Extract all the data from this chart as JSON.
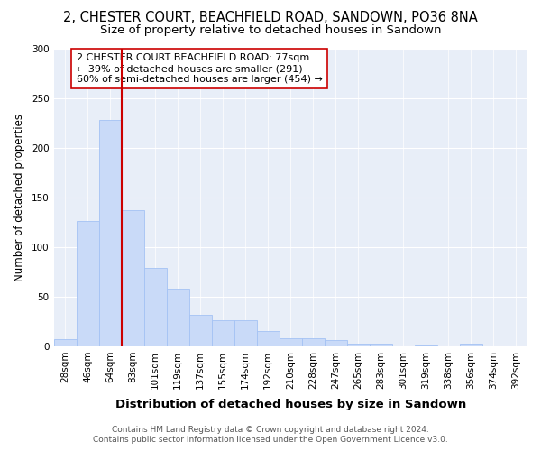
{
  "title": "2, CHESTER COURT, BEACHFIELD ROAD, SANDOWN, PO36 8NA",
  "subtitle": "Size of property relative to detached houses in Sandown",
  "xlabel": "Distribution of detached houses by size in Sandown",
  "ylabel": "Number of detached properties",
  "bar_labels": [
    "28sqm",
    "46sqm",
    "64sqm",
    "83sqm",
    "101sqm",
    "119sqm",
    "137sqm",
    "155sqm",
    "174sqm",
    "192sqm",
    "210sqm",
    "228sqm",
    "247sqm",
    "265sqm",
    "283sqm",
    "301sqm",
    "319sqm",
    "338sqm",
    "356sqm",
    "374sqm",
    "392sqm"
  ],
  "bar_values": [
    7,
    126,
    228,
    137,
    79,
    58,
    32,
    26,
    26,
    15,
    8,
    8,
    6,
    3,
    3,
    0,
    1,
    0,
    3,
    0,
    0
  ],
  "bar_color": "#c9daf8",
  "bar_edge_color": "#a4c2f4",
  "vline_color": "#cc0000",
  "vline_pos": 3.0,
  "ylim": [
    0,
    300
  ],
  "yticks": [
    0,
    50,
    100,
    150,
    200,
    250,
    300
  ],
  "annotation_title": "2 CHESTER COURT BEACHFIELD ROAD: 77sqm",
  "annotation_line1": "← 39% of detached houses are smaller (291)",
  "annotation_line2": "60% of semi-detached houses are larger (454) →",
  "annotation_box_color": "#ffffff",
  "annotation_edge_color": "#cc0000",
  "footer1": "Contains HM Land Registry data © Crown copyright and database right 2024.",
  "footer2": "Contains public sector information licensed under the Open Government Licence v3.0.",
  "plot_bg_color": "#e8eef8",
  "fig_bg_color": "#ffffff",
  "grid_color": "#ffffff",
  "title_fontsize": 10.5,
  "subtitle_fontsize": 9.5,
  "xlabel_fontsize": 9.5,
  "ylabel_fontsize": 8.5,
  "tick_fontsize": 7.5,
  "annotation_fontsize": 8,
  "footer_fontsize": 6.5
}
